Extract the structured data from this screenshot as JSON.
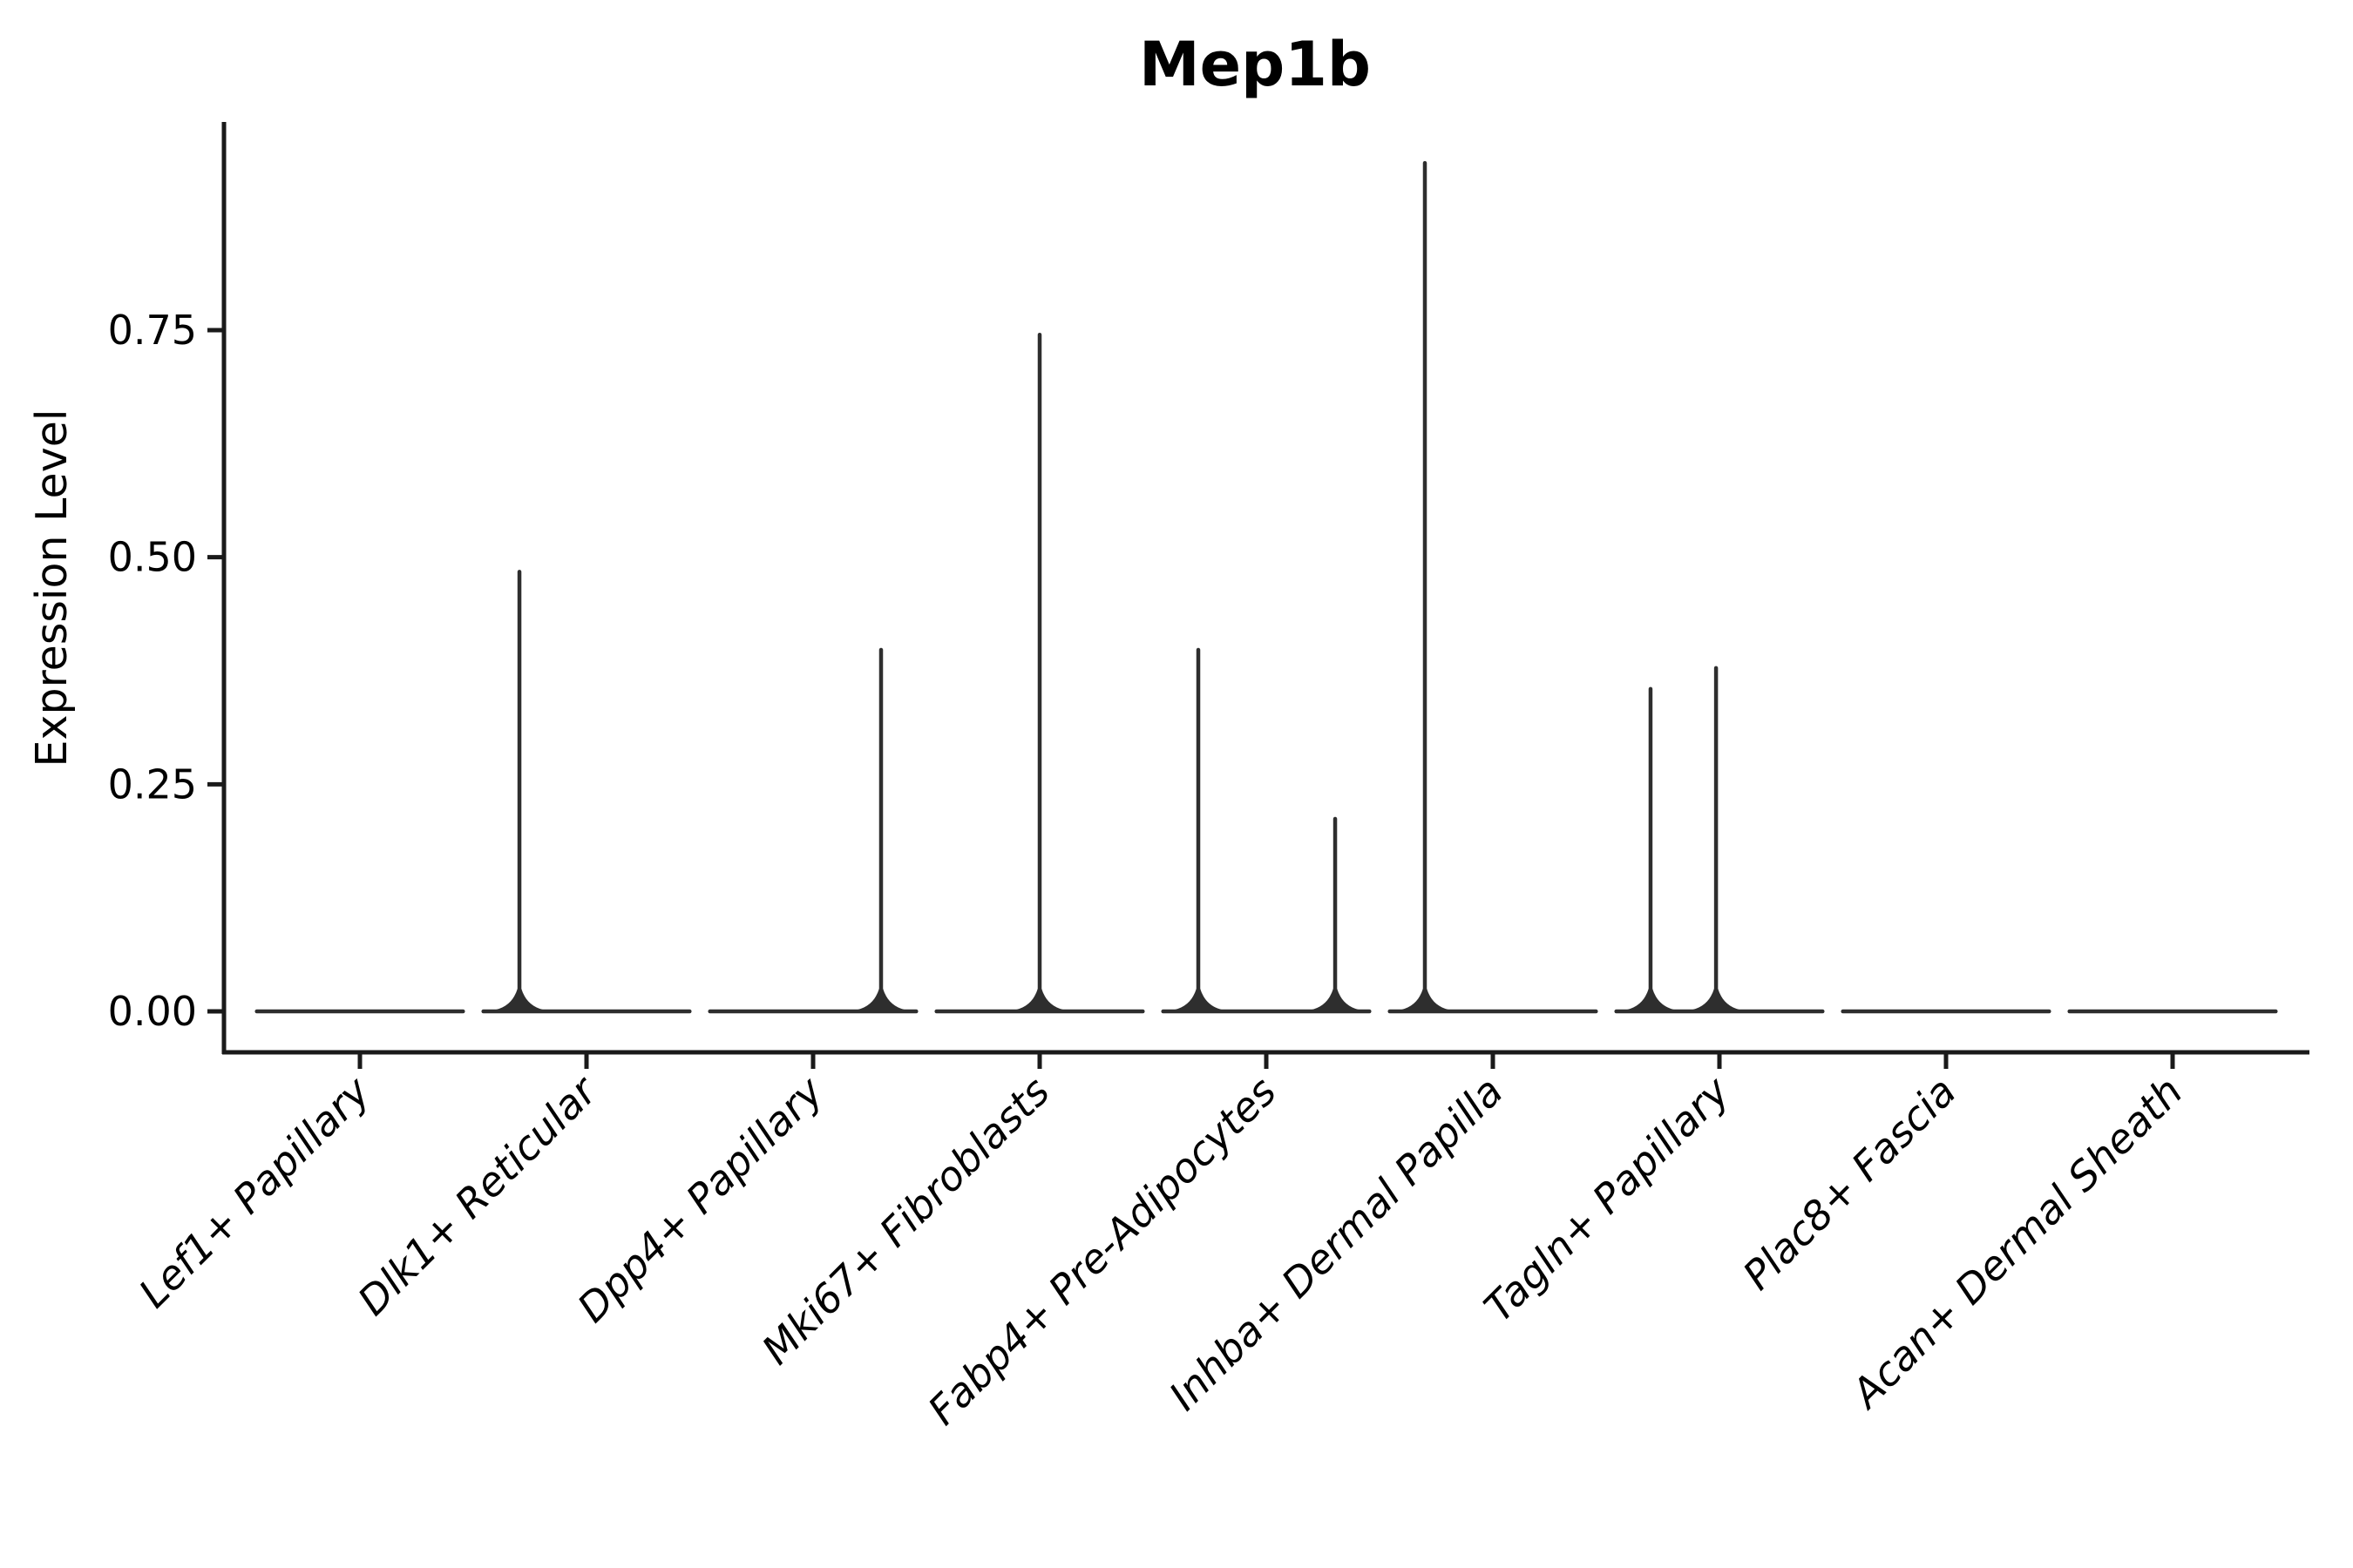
{
  "figure": {
    "background": "#ffffff"
  },
  "chart_data": {
    "type": "violin",
    "title": "Mep1b",
    "xlabel": "",
    "ylabel": "Expression Level",
    "ylim": [
      -0.045,
      0.981
    ],
    "yticks": [
      "0.00",
      "0.25",
      "0.50",
      "0.75"
    ],
    "ytick_values": [
      0.0,
      0.25,
      0.5,
      0.75
    ],
    "grid": false,
    "legend": "none",
    "axis_color": "#1a1a1a",
    "violin_color": "#2e2e2e",
    "categories": [
      "Lef1+ Papillary",
      "Dlk1+ Reticular",
      "Dpp4+ Papillary",
      "Mki67+ Fibroblasts",
      "Fabp4+ Pre-Adipocytes",
      "Inhba+ Dermal Papilla",
      "Tagln+ Papillary",
      "Plac8+ Fascia",
      "Acan+ Dermal Sheath"
    ],
    "violins": [
      {
        "category": "Lef1+ Papillary",
        "baseline_halfwidth": 0.455,
        "spikes": []
      },
      {
        "category": "Dlk1+ Reticular",
        "baseline_halfwidth": 0.455,
        "spikes": [
          {
            "offset": -0.296,
            "max_expression": 0.484
          }
        ]
      },
      {
        "category": "Dpp4+ Papillary",
        "baseline_halfwidth": 0.455,
        "spikes": [
          {
            "offset": 0.3,
            "max_expression": 0.398
          }
        ]
      },
      {
        "category": "Mki67+ Fibroblasts",
        "baseline_halfwidth": 0.455,
        "spikes": [
          {
            "offset": 0.0,
            "max_expression": 0.745
          }
        ]
      },
      {
        "category": "Fabp4+ Pre-Adipocytes",
        "baseline_halfwidth": 0.455,
        "spikes": [
          {
            "offset": -0.3,
            "max_expression": 0.398
          },
          {
            "offset": 0.304,
            "max_expression": 0.212
          }
        ]
      },
      {
        "category": "Inhba+ Dermal Papilla",
        "baseline_halfwidth": 0.455,
        "spikes": [
          {
            "offset": -0.3,
            "max_expression": 0.934
          }
        ]
      },
      {
        "category": "Tagln+ Papillary",
        "baseline_halfwidth": 0.455,
        "spikes": [
          {
            "offset": -0.304,
            "max_expression": 0.355
          },
          {
            "offset": -0.015,
            "max_expression": 0.378
          }
        ]
      },
      {
        "category": "Plac8+ Fascia",
        "baseline_halfwidth": 0.455,
        "spikes": []
      },
      {
        "category": "Acan+ Dermal Sheath",
        "baseline_halfwidth": 0.455,
        "spikes": []
      }
    ]
  }
}
